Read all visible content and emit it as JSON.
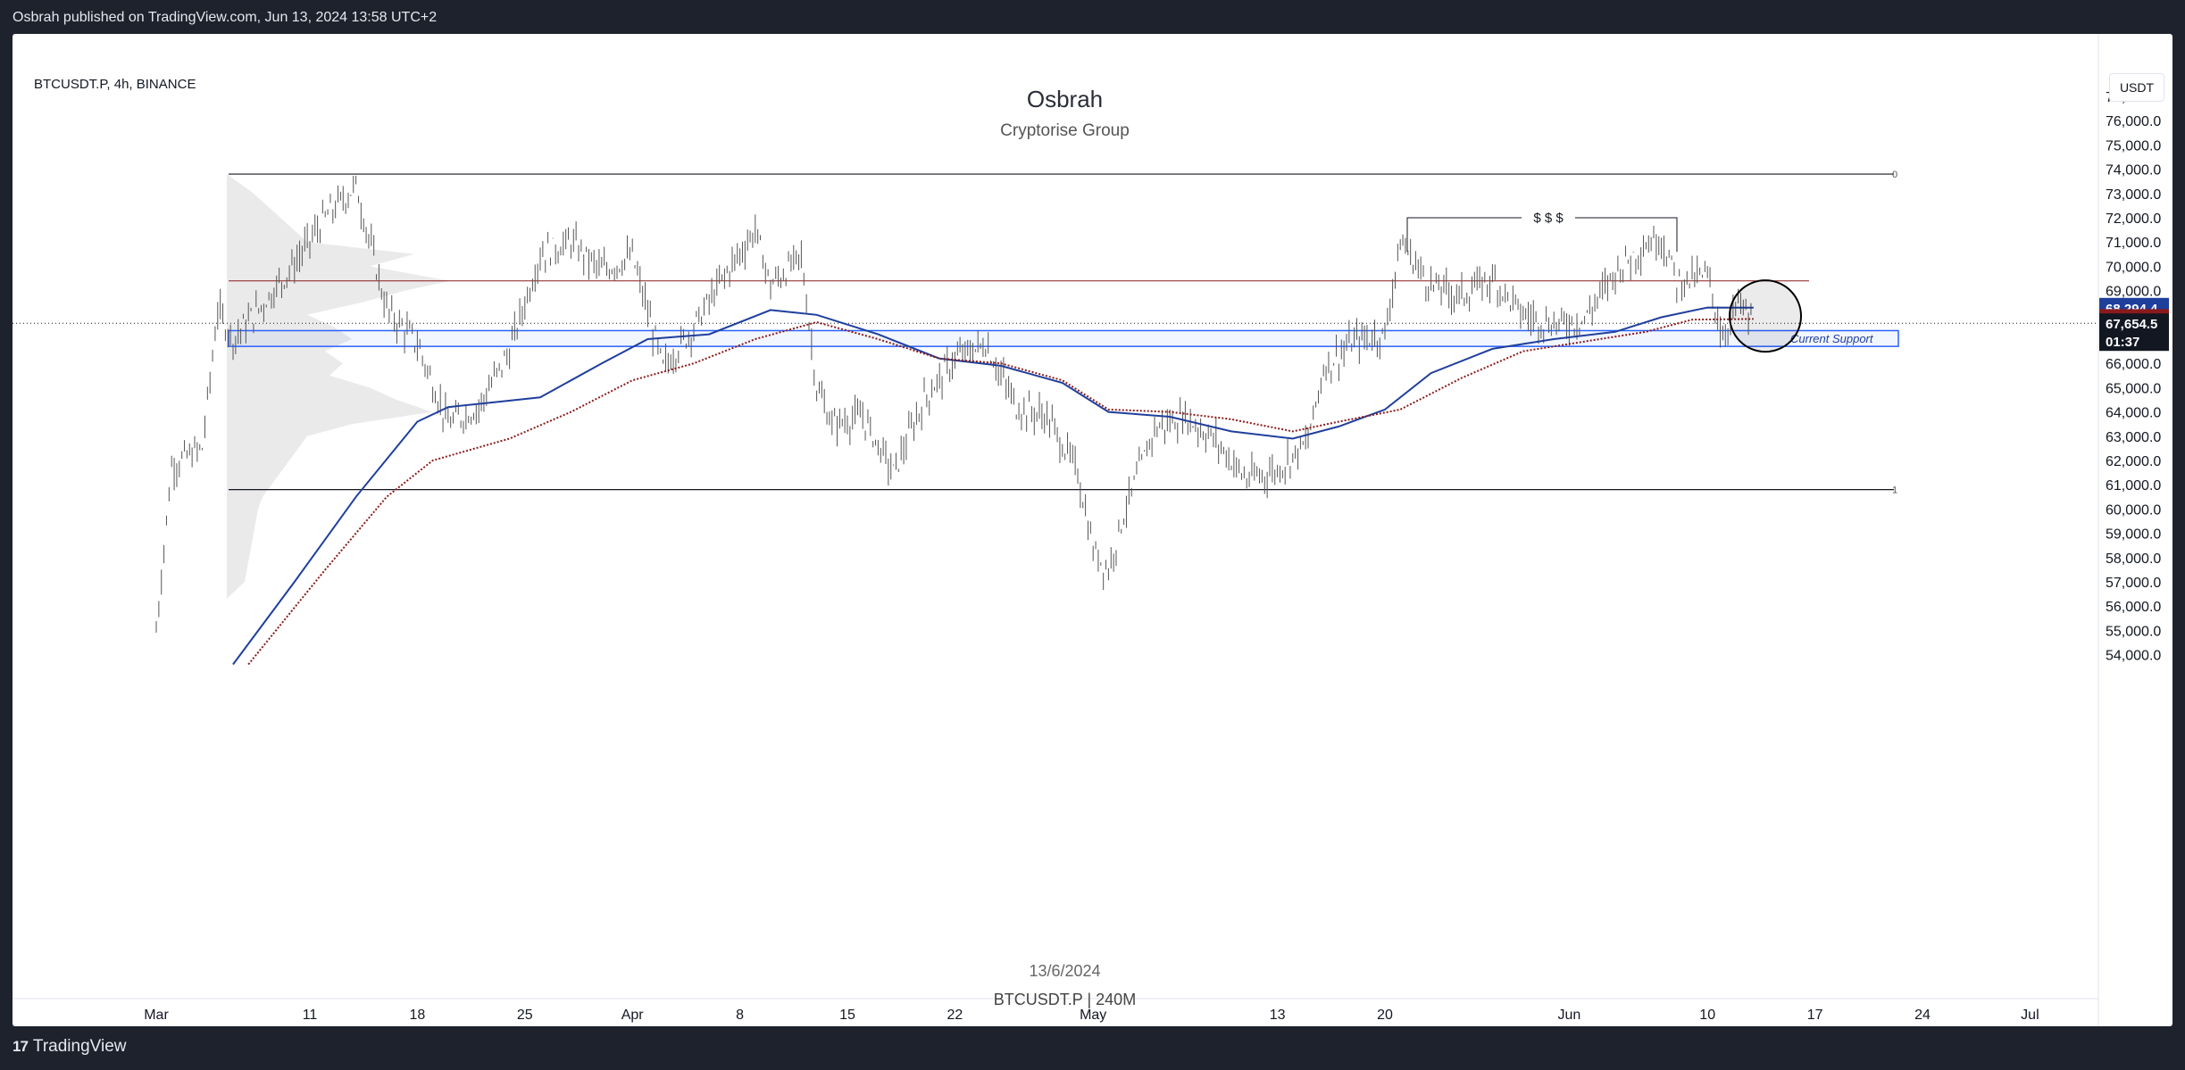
{
  "header": {
    "published": "Osbrah published on TradingView.com, Jun 13, 2024 13:58 UTC+2"
  },
  "footer": {
    "logo_text": "TradingView"
  },
  "chart_info": {
    "symbol": "BTCUSDT.P, 4h, BINANCE",
    "author": "Osbrah",
    "group": "Cryptorise Group",
    "watermark_date": "13/6/2024",
    "watermark_symbol": "BTCUSDT.P | 240M",
    "currency": "USDT"
  },
  "chart_data": {
    "type": "bar",
    "x_axis": {
      "ticks": [
        "Mar",
        "11",
        "18",
        "25",
        "Apr",
        "8",
        "15",
        "22",
        "May",
        "13",
        "20",
        "Jun",
        "10",
        "17",
        "24",
        "Jul"
      ]
    },
    "y_axis": {
      "ticks": [
        "77,000.0",
        "76,000.0",
        "75,000.0",
        "74,000.0",
        "73,000.0",
        "72,000.0",
        "71,000.0",
        "70,000.0",
        "69,000.0",
        "68,000.0",
        "67,000.0",
        "66,000.0",
        "65,000.0",
        "64,000.0",
        "63,000.0",
        "62,000.0",
        "61,000.0",
        "60,000.0",
        "59,000.0",
        "58,000.0",
        "57,000.0",
        "56,000.0",
        "55,000.0",
        "54,000.0"
      ],
      "ylim": [
        53600,
        78000
      ]
    },
    "price_series": {
      "name": "BTCUSDT.P",
      "points": [
        {
          "d": "2024-03-01",
          "v": 55000
        },
        {
          "d": "2024-03-02",
          "v": 61800
        },
        {
          "d": "2024-03-04",
          "v": 62500
        },
        {
          "d": "2024-03-05",
          "v": 68200
        },
        {
          "d": "2024-03-06",
          "v": 67000
        },
        {
          "d": "2024-03-08",
          "v": 68500
        },
        {
          "d": "2024-03-10",
          "v": 70100
        },
        {
          "d": "2024-03-12",
          "v": 72000
        },
        {
          "d": "2024-03-14",
          "v": 73300
        },
        {
          "d": "2024-03-16",
          "v": 68200
        },
        {
          "d": "2024-03-18",
          "v": 66800
        },
        {
          "d": "2024-03-20",
          "v": 63500
        },
        {
          "d": "2024-03-22",
          "v": 64200
        },
        {
          "d": "2024-03-24",
          "v": 66500
        },
        {
          "d": "2024-03-26",
          "v": 70500
        },
        {
          "d": "2024-03-28",
          "v": 71000
        },
        {
          "d": "2024-03-30",
          "v": 69800
        },
        {
          "d": "2024-04-01",
          "v": 70400
        },
        {
          "d": "2024-04-03",
          "v": 65800
        },
        {
          "d": "2024-04-05",
          "v": 67500
        },
        {
          "d": "2024-04-07",
          "v": 69600
        },
        {
          "d": "2024-04-09",
          "v": 71500
        },
        {
          "d": "2024-04-10",
          "v": 69200
        },
        {
          "d": "2024-04-12",
          "v": 70400
        },
        {
          "d": "2024-04-13",
          "v": 65000
        },
        {
          "d": "2024-04-14",
          "v": 63500
        },
        {
          "d": "2024-04-16",
          "v": 63800
        },
        {
          "d": "2024-04-18",
          "v": 61500
        },
        {
          "d": "2024-04-20",
          "v": 64500
        },
        {
          "d": "2024-04-22",
          "v": 66200
        },
        {
          "d": "2024-04-24",
          "v": 66800
        },
        {
          "d": "2024-04-26",
          "v": 64200
        },
        {
          "d": "2024-04-28",
          "v": 63800
        },
        {
          "d": "2024-04-30",
          "v": 61500
        },
        {
          "d": "2024-05-01",
          "v": 58300
        },
        {
          "d": "2024-05-02",
          "v": 57500
        },
        {
          "d": "2024-05-03",
          "v": 59800
        },
        {
          "d": "2024-05-05",
          "v": 63300
        },
        {
          "d": "2024-05-07",
          "v": 63800
        },
        {
          "d": "2024-05-09",
          "v": 62800
        },
        {
          "d": "2024-05-11",
          "v": 61200
        },
        {
          "d": "2024-05-13",
          "v": 61600
        },
        {
          "d": "2024-05-15",
          "v": 62800
        },
        {
          "d": "2024-05-16",
          "v": 65800
        },
        {
          "d": "2024-05-18",
          "v": 66900
        },
        {
          "d": "2024-05-20",
          "v": 67200
        },
        {
          "d": "2024-05-21",
          "v": 71000
        },
        {
          "d": "2024-05-23",
          "v": 69200
        },
        {
          "d": "2024-05-25",
          "v": 68800
        },
        {
          "d": "2024-05-27",
          "v": 69500
        },
        {
          "d": "2024-05-29",
          "v": 68000
        },
        {
          "d": "2024-05-31",
          "v": 67600
        },
        {
          "d": "2024-06-02",
          "v": 67800
        },
        {
          "d": "2024-06-04",
          "v": 69800
        },
        {
          "d": "2024-06-06",
          "v": 70900
        },
        {
          "d": "2024-06-07",
          "v": 71200
        },
        {
          "d": "2024-06-08",
          "v": 69400
        },
        {
          "d": "2024-06-10",
          "v": 69600
        },
        {
          "d": "2024-06-11",
          "v": 67100
        },
        {
          "d": "2024-06-12",
          "v": 68500
        },
        {
          "d": "2024-06-13",
          "v": 67650
        }
      ]
    },
    "ma_blue": {
      "name": "MA",
      "color": "#1f3f9c",
      "points": [
        {
          "d": "2024-03-06",
          "v": 53600
        },
        {
          "d": "2024-03-10",
          "v": 57000
        },
        {
          "d": "2024-03-14",
          "v": 60500
        },
        {
          "d": "2024-03-18",
          "v": 63600
        },
        {
          "d": "2024-03-20",
          "v": 64200
        },
        {
          "d": "2024-03-23",
          "v": 64400
        },
        {
          "d": "2024-03-26",
          "v": 64600
        },
        {
          "d": "2024-03-30",
          "v": 66000
        },
        {
          "d": "2024-04-02",
          "v": 67000
        },
        {
          "d": "2024-04-06",
          "v": 67200
        },
        {
          "d": "2024-04-10",
          "v": 68200
        },
        {
          "d": "2024-04-13",
          "v": 68000
        },
        {
          "d": "2024-04-17",
          "v": 67200
        },
        {
          "d": "2024-04-21",
          "v": 66200
        },
        {
          "d": "2024-04-25",
          "v": 65900
        },
        {
          "d": "2024-04-29",
          "v": 65200
        },
        {
          "d": "2024-05-02",
          "v": 64000
        },
        {
          "d": "2024-05-06",
          "v": 63800
        },
        {
          "d": "2024-05-10",
          "v": 63200
        },
        {
          "d": "2024-05-14",
          "v": 62900
        },
        {
          "d": "2024-05-17",
          "v": 63400
        },
        {
          "d": "2024-05-20",
          "v": 64100
        },
        {
          "d": "2024-05-23",
          "v": 65600
        },
        {
          "d": "2024-05-27",
          "v": 66600
        },
        {
          "d": "2024-05-31",
          "v": 67000
        },
        {
          "d": "2024-06-04",
          "v": 67300
        },
        {
          "d": "2024-06-07",
          "v": 67900
        },
        {
          "d": "2024-06-10",
          "v": 68300
        },
        {
          "d": "2024-06-13",
          "v": 68294
        }
      ]
    },
    "ma_red": {
      "name": "MA",
      "color": "#8b1a1a",
      "points": [
        {
          "d": "2024-03-07",
          "v": 53600
        },
        {
          "d": "2024-03-12",
          "v": 57500
        },
        {
          "d": "2024-03-16",
          "v": 60500
        },
        {
          "d": "2024-03-19",
          "v": 62000
        },
        {
          "d": "2024-03-24",
          "v": 62900
        },
        {
          "d": "2024-03-28",
          "v": 64000
        },
        {
          "d": "2024-04-01",
          "v": 65300
        },
        {
          "d": "2024-04-05",
          "v": 66000
        },
        {
          "d": "2024-04-09",
          "v": 67000
        },
        {
          "d": "2024-04-13",
          "v": 67700
        },
        {
          "d": "2024-04-17",
          "v": 67000
        },
        {
          "d": "2024-04-21",
          "v": 66200
        },
        {
          "d": "2024-04-25",
          "v": 66000
        },
        {
          "d": "2024-04-29",
          "v": 65300
        },
        {
          "d": "2024-05-02",
          "v": 64100
        },
        {
          "d": "2024-05-06",
          "v": 64000
        },
        {
          "d": "2024-05-10",
          "v": 63700
        },
        {
          "d": "2024-05-14",
          "v": 63200
        },
        {
          "d": "2024-05-17",
          "v": 63600
        },
        {
          "d": "2024-05-21",
          "v": 64100
        },
        {
          "d": "2024-05-25",
          "v": 65400
        },
        {
          "d": "2024-05-29",
          "v": 66500
        },
        {
          "d": "2024-06-02",
          "v": 66900
        },
        {
          "d": "2024-06-06",
          "v": 67300
        },
        {
          "d": "2024-06-09",
          "v": 67800
        },
        {
          "d": "2024-06-13",
          "v": 67831
        }
      ]
    },
    "annotations": {
      "range_high_label": "0",
      "range_low_label": "1",
      "liquidity_label": "$ $ $",
      "support_label": "Current Support",
      "range_high": 73800,
      "range_low": 60800,
      "resistance": 69400,
      "support_box": [
        66700,
        67350
      ]
    },
    "price_tags": [
      {
        "value": "68,294.4",
        "color": "#1f3f9c"
      },
      {
        "value": "67,831.2",
        "color": "#8b1a1a"
      },
      {
        "value": "67,654.5",
        "color": "#131722"
      },
      {
        "value": "01:37",
        "color": "#131722"
      }
    ]
  }
}
